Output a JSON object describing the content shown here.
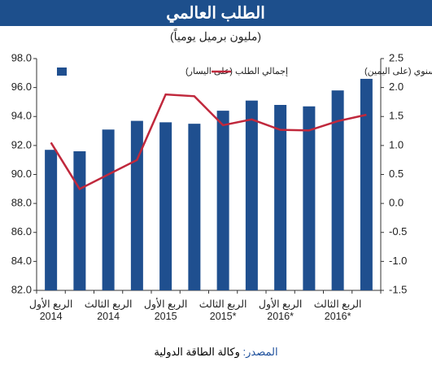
{
  "chart_data": {
    "type": "bar",
    "title": "الطلب العالمي",
    "subtitle": "(مليون برميل يومياً)",
    "categories": [
      "الربع الأول\n2014",
      null,
      "الربع الثالث\n2014",
      null,
      "الربع الأول\n2015",
      null,
      "الربع الثالث\n*2015",
      null,
      "الربع الأول\n*2016",
      null,
      "الربع الثالث\n*2016",
      null
    ],
    "series": [
      {
        "name": "إجمالي الطلب (على اليسار)",
        "type": "bar",
        "color": "#1f4f8f",
        "values": [
          91.7,
          91.6,
          93.1,
          93.7,
          93.6,
          93.5,
          94.4,
          95.1,
          94.8,
          94.7,
          95.8,
          96.6
        ]
      },
      {
        "name": "النمو على اساس سنوي (على اليمين)",
        "type": "line",
        "axis": "y2",
        "color": "#c0283c",
        "values": [
          1.05,
          0.25,
          0.5,
          0.75,
          1.88,
          1.85,
          1.35,
          1.45,
          1.27,
          1.26,
          1.42,
          1.53
        ]
      }
    ],
    "ylim": [
      82,
      98
    ],
    "yticks": [
      {
        "value": 82,
        "label": "82.0"
      },
      {
        "value": 84,
        "label": "84.0"
      },
      {
        "value": 86,
        "label": "86.0"
      },
      {
        "value": 88,
        "label": "88.0"
      },
      {
        "value": 90,
        "label": "90.0"
      },
      {
        "value": 92,
        "label": "92.0"
      },
      {
        "value": 94,
        "label": "94.0"
      },
      {
        "value": 96,
        "label": "96.0"
      },
      {
        "value": 98,
        "label": "98.0"
      }
    ],
    "y2lim": [
      -1.5,
      2.5
    ],
    "y2ticks": [
      -1.5,
      {
        "value": -1,
        "label": "-1.0"
      },
      -0.5,
      {
        "value": 0,
        "label": "0.0"
      },
      0.5,
      {
        "value": 1,
        "label": "1.0"
      },
      1.5,
      {
        "value": 2,
        "label": "2.0"
      },
      2.5
    ],
    "source_label": "المصدر:",
    "source_text": "وكالة الطاقة الدولية"
  }
}
